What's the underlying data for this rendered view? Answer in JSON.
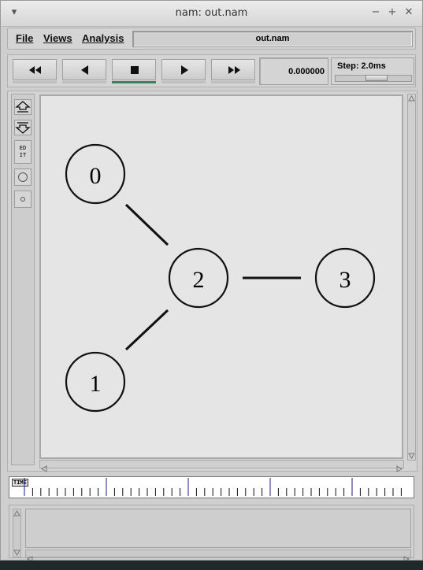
{
  "window": {
    "title": "nam: out.nam",
    "buttons": [
      "window-menu-icon",
      "minimize-icon",
      "maximize-icon",
      "close-icon"
    ]
  },
  "menu": {
    "file": "File",
    "views": "Views",
    "analysis": "Analysis",
    "filename": "out.nam"
  },
  "controls": {
    "time": "0.000000",
    "step": "Step: 2.0ms",
    "active_button": "stop"
  },
  "tools": {
    "edit": "ED\nIT"
  },
  "network": {
    "nodes": [
      {
        "label": "0"
      },
      {
        "label": "1"
      },
      {
        "label": "2"
      },
      {
        "label": "3"
      }
    ],
    "links": [
      [
        "0",
        "2"
      ],
      [
        "1",
        "2"
      ],
      [
        "2",
        "3"
      ]
    ]
  },
  "timeline": {
    "label": "TIME"
  },
  "colors": {
    "canvas": "#e5e5e5",
    "active_indicator": "#2e8b57",
    "major_tick": "#1a1aa6"
  }
}
